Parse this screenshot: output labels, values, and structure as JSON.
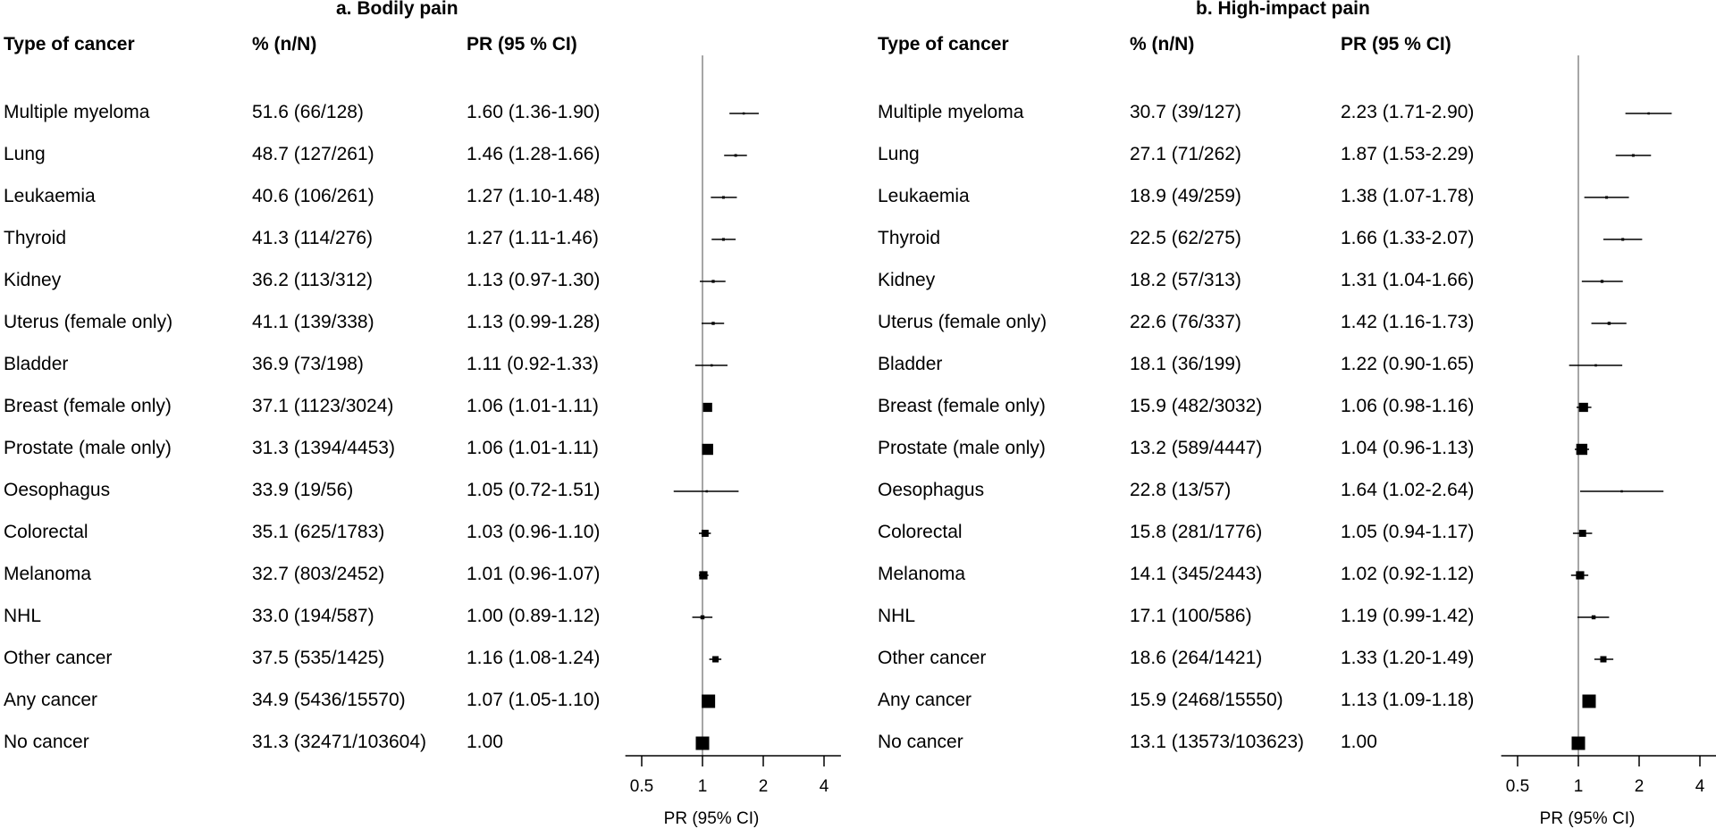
{
  "chart_data": [
    {
      "type": "forest",
      "title": "a. Bodily pain",
      "columns": [
        "Type of cancer",
        "% (n/N)",
        "PR (95 % CI)"
      ],
      "xlabel": "PR (95% CI)",
      "x_scale": "log2",
      "xlim": [
        0.45,
        5
      ],
      "xticks": [
        0.5,
        1,
        2,
        4
      ],
      "xtick_labels": [
        "0.5",
        "1",
        "2",
        "4"
      ],
      "reference_line": 1,
      "rows": [
        {
          "label": "Multiple myeloma",
          "pct": "51.6 (66/128)",
          "pr_text": "1.60 (1.36-1.90)",
          "pr": 1.6,
          "lo": 1.36,
          "hi": 1.9,
          "n": 128
        },
        {
          "label": "Lung",
          "pct": "48.7 (127/261)",
          "pr_text": "1.46 (1.28-1.66)",
          "pr": 1.46,
          "lo": 1.28,
          "hi": 1.66,
          "n": 261
        },
        {
          "label": "Leukaemia",
          "pct": "40.6 (106/261)",
          "pr_text": "1.27 (1.10-1.48)",
          "pr": 1.27,
          "lo": 1.1,
          "hi": 1.48,
          "n": 261
        },
        {
          "label": "Thyroid",
          "pct": "41.3 (114/276)",
          "pr_text": "1.27 (1.11-1.46)",
          "pr": 1.27,
          "lo": 1.11,
          "hi": 1.46,
          "n": 276
        },
        {
          "label": "Kidney",
          "pct": "36.2 (113/312)",
          "pr_text": "1.13 (0.97-1.30)",
          "pr": 1.13,
          "lo": 0.97,
          "hi": 1.3,
          "n": 312
        },
        {
          "label": "Uterus (female only)",
          "pct": "41.1 (139/338)",
          "pr_text": "1.13 (0.99-1.28)",
          "pr": 1.13,
          "lo": 0.99,
          "hi": 1.28,
          "n": 338
        },
        {
          "label": "Bladder",
          "pct": "36.9 (73/198)",
          "pr_text": "1.11 (0.92-1.33)",
          "pr": 1.11,
          "lo": 0.92,
          "hi": 1.33,
          "n": 198
        },
        {
          "label": "Breast (female only)",
          "pct": "37.1 (1123/3024)",
          "pr_text": "1.06 (1.01-1.11)",
          "pr": 1.06,
          "lo": 1.01,
          "hi": 1.11,
          "n": 3024
        },
        {
          "label": "Prostate (male only)",
          "pct": "31.3 (1394/4453)",
          "pr_text": "1.06 (1.01-1.11)",
          "pr": 1.06,
          "lo": 1.01,
          "hi": 1.11,
          "n": 4453
        },
        {
          "label": "Oesophagus",
          "pct": "33.9 (19/56)",
          "pr_text": "1.05 (0.72-1.51)",
          "pr": 1.05,
          "lo": 0.72,
          "hi": 1.51,
          "n": 56
        },
        {
          "label": "Colorectal",
          "pct": "35.1 (625/1783)",
          "pr_text": "1.03 (0.96-1.10)",
          "pr": 1.03,
          "lo": 0.96,
          "hi": 1.1,
          "n": 1783
        },
        {
          "label": "Melanoma",
          "pct": "32.7 (803/2452)",
          "pr_text": "1.01 (0.96-1.07)",
          "pr": 1.01,
          "lo": 0.96,
          "hi": 1.07,
          "n": 2452
        },
        {
          "label": "NHL",
          "pct": "33.0 (194/587)",
          "pr_text": "1.00 (0.89-1.12)",
          "pr": 1.0,
          "lo": 0.89,
          "hi": 1.12,
          "n": 587
        },
        {
          "label": "Other cancer",
          "pct": "37.5 (535/1425)",
          "pr_text": "1.16 (1.08-1.24)",
          "pr": 1.16,
          "lo": 1.08,
          "hi": 1.24,
          "n": 1425
        },
        {
          "label": "Any cancer",
          "pct": "34.9 (5436/15570)",
          "pr_text": "1.07 (1.05-1.10)",
          "pr": 1.07,
          "lo": 1.05,
          "hi": 1.1,
          "n": 15570
        },
        {
          "label": "No cancer",
          "pct": "31.3 (32471/103604)",
          "pr_text": "1.00",
          "pr": 1.0,
          "lo": 1.0,
          "hi": 1.0,
          "n": 103604
        }
      ]
    },
    {
      "type": "forest",
      "title": "b. High-impact pain",
      "columns": [
        "Type of cancer",
        "% (n/N)",
        "PR (95 % CI)"
      ],
      "xlabel": "PR (95% CI)",
      "x_scale": "log2",
      "xlim": [
        0.45,
        5
      ],
      "xticks": [
        0.5,
        1,
        2,
        4
      ],
      "xtick_labels": [
        "0.5",
        "1",
        "2",
        "4"
      ],
      "reference_line": 1,
      "rows": [
        {
          "label": "Multiple myeloma",
          "pct": "30.7 (39/127)",
          "pr_text": "2.23 (1.71-2.90)",
          "pr": 2.23,
          "lo": 1.71,
          "hi": 2.9,
          "n": 127
        },
        {
          "label": "Lung",
          "pct": "27.1 (71/262)",
          "pr_text": "1.87 (1.53-2.29)",
          "pr": 1.87,
          "lo": 1.53,
          "hi": 2.29,
          "n": 262
        },
        {
          "label": "Leukaemia",
          "pct": "18.9 (49/259)",
          "pr_text": "1.38 (1.07-1.78)",
          "pr": 1.38,
          "lo": 1.07,
          "hi": 1.78,
          "n": 259
        },
        {
          "label": "Thyroid",
          "pct": "22.5 (62/275)",
          "pr_text": "1.66 (1.33-2.07)",
          "pr": 1.66,
          "lo": 1.33,
          "hi": 2.07,
          "n": 275
        },
        {
          "label": "Kidney",
          "pct": "18.2 (57/313)",
          "pr_text": "1.31 (1.04-1.66)",
          "pr": 1.31,
          "lo": 1.04,
          "hi": 1.66,
          "n": 313
        },
        {
          "label": "Uterus (female only)",
          "pct": "22.6 (76/337)",
          "pr_text": "1.42 (1.16-1.73)",
          "pr": 1.42,
          "lo": 1.16,
          "hi": 1.73,
          "n": 337
        },
        {
          "label": "Bladder",
          "pct": "18.1 (36/199)",
          "pr_text": "1.22 (0.90-1.65)",
          "pr": 1.22,
          "lo": 0.9,
          "hi": 1.65,
          "n": 199
        },
        {
          "label": "Breast (female only)",
          "pct": "15.9 (482/3032)",
          "pr_text": "1.06 (0.98-1.16)",
          "pr": 1.06,
          "lo": 0.98,
          "hi": 1.16,
          "n": 3032
        },
        {
          "label": "Prostate (male only)",
          "pct": "13.2 (589/4447)",
          "pr_text": "1.04 (0.96-1.13)",
          "pr": 1.04,
          "lo": 0.96,
          "hi": 1.13,
          "n": 4447
        },
        {
          "label": "Oesophagus",
          "pct": "22.8 (13/57)",
          "pr_text": "1.64 (1.02-2.64)",
          "pr": 1.64,
          "lo": 1.02,
          "hi": 2.64,
          "n": 57
        },
        {
          "label": "Colorectal",
          "pct": "15.8 (281/1776)",
          "pr_text": "1.05 (0.94-1.17)",
          "pr": 1.05,
          "lo": 0.94,
          "hi": 1.17,
          "n": 1776
        },
        {
          "label": "Melanoma",
          "pct": "14.1 (345/2443)",
          "pr_text": "1.02 (0.92-1.12)",
          "pr": 1.02,
          "lo": 0.92,
          "hi": 1.12,
          "n": 2443
        },
        {
          "label": "NHL",
          "pct": "17.1 (100/586)",
          "pr_text": "1.19 (0.99-1.42)",
          "pr": 1.19,
          "lo": 0.99,
          "hi": 1.42,
          "n": 586
        },
        {
          "label": "Other cancer",
          "pct": "18.6 (264/1421)",
          "pr_text": "1.33 (1.20-1.49)",
          "pr": 1.33,
          "lo": 1.2,
          "hi": 1.49,
          "n": 1421
        },
        {
          "label": "Any cancer",
          "pct": "15.9 (2468/15550)",
          "pr_text": "1.13 (1.09-1.18)",
          "pr": 1.13,
          "lo": 1.09,
          "hi": 1.18,
          "n": 15550
        },
        {
          "label": "No cancer",
          "pct": "13.1 (13573/103623)",
          "pr_text": "1.00",
          "pr": 1.0,
          "lo": 1.0,
          "hi": 1.0,
          "n": 103623
        }
      ]
    }
  ]
}
